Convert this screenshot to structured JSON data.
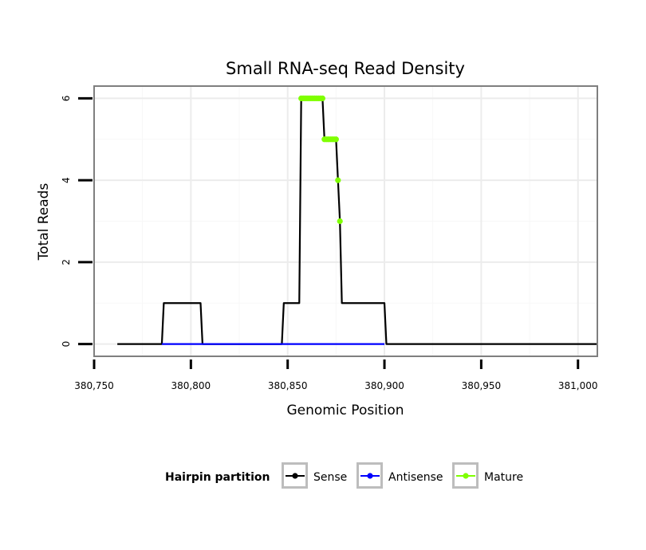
{
  "chart_data": {
    "type": "line",
    "title": "Small RNA-seq Read Density",
    "xlabel": "Genomic Position",
    "ylabel": "Total Reads",
    "xlim": [
      380750,
      381010
    ],
    "ylim": [
      -0.3,
      6.3
    ],
    "x_ticks": [
      380750,
      380800,
      380850,
      380900,
      380950,
      381000
    ],
    "x_tick_labels": [
      "380,750",
      "380,800",
      "380,850",
      "380,900",
      "380,950",
      "381,000"
    ],
    "y_ticks": [
      0,
      2,
      4,
      6
    ],
    "y_tick_labels": [
      "0",
      "2",
      "4",
      "6"
    ],
    "grid": true,
    "legend": {
      "title": "Hairpin partition",
      "position": "bottom",
      "entries": [
        {
          "name": "Sense",
          "color": "#000000"
        },
        {
          "name": "Antisense",
          "color": "#0000ff"
        },
        {
          "name": "Mature",
          "color": "#7fff00"
        }
      ]
    },
    "series": [
      {
        "name": "Sense",
        "color": "#000000",
        "style": "line",
        "x": [
          380762,
          380785,
          380786,
          380805,
          380806,
          380847,
          380848,
          380856,
          380857,
          380868,
          380869,
          380875,
          380876,
          380877,
          380878,
          380900,
          380901,
          381010
        ],
        "y": [
          0,
          0,
          1,
          1,
          0,
          0,
          1,
          1,
          6,
          6,
          5,
          5,
          4,
          3,
          1,
          1,
          0,
          0
        ]
      },
      {
        "name": "Antisense",
        "color": "#0000ff",
        "style": "line",
        "x": [
          380785,
          380900
        ],
        "y": [
          0,
          0
        ]
      },
      {
        "name": "Mature",
        "color": "#7fff00",
        "style": "points",
        "x": [
          380857,
          380858,
          380859,
          380860,
          380861,
          380862,
          380863,
          380864,
          380865,
          380866,
          380867,
          380868,
          380869,
          380870,
          380871,
          380872,
          380873,
          380874,
          380875,
          380876,
          380877
        ],
        "y": [
          6,
          6,
          6,
          6,
          6,
          6,
          6,
          6,
          6,
          6,
          6,
          6,
          5,
          5,
          5,
          5,
          5,
          5,
          5,
          4,
          3
        ]
      }
    ]
  }
}
